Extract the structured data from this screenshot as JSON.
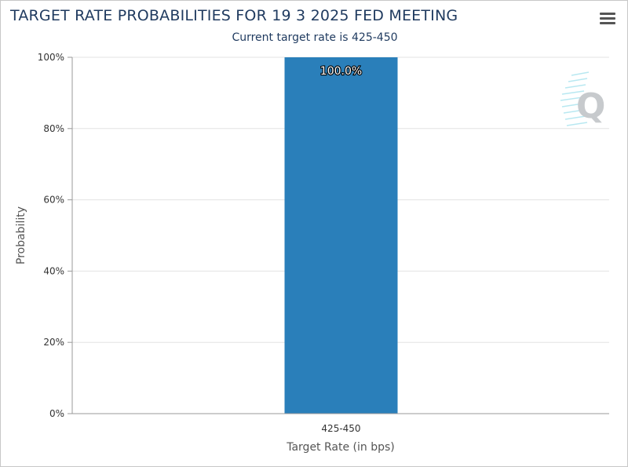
{
  "header": {
    "title": "TARGET RATE PROBABILITIES FOR 19 3 2025 FED MEETING",
    "subtitle": "Current target rate is 425-450",
    "menu_icon": "hamburger-menu-icon"
  },
  "watermark_icon": "cme-q-logo-icon",
  "colors": {
    "bar": "#2a7fba",
    "grid": "#e3e3e3",
    "title": "#1f3a5f"
  },
  "chart_data": {
    "type": "bar",
    "title": "TARGET RATE PROBABILITIES FOR 19 3 2025 FED MEETING",
    "subtitle": "Current target rate is 425-450",
    "categories": [
      "425-450"
    ],
    "values": [
      100.0
    ],
    "data_labels": [
      "100.0%"
    ],
    "xlabel": "Target Rate (in bps)",
    "ylabel": "Probability",
    "ylim": [
      0,
      100
    ],
    "yticks": [
      "0%",
      "20%",
      "40%",
      "60%",
      "80%",
      "100%"
    ],
    "grid": true,
    "legend": "none"
  }
}
